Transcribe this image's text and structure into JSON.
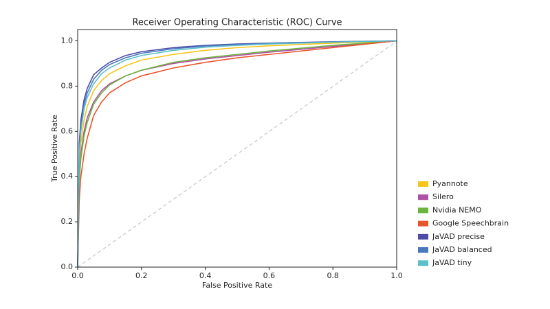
{
  "chart_data": {
    "type": "line",
    "title": "Receiver Operating Characteristic (ROC) Curve",
    "xlabel": "False Positive Rate",
    "ylabel": "True Positive Rate",
    "x": [
      0,
      0.005,
      0.01,
      0.02,
      0.03,
      0.05,
      0.075,
      0.1,
      0.15,
      0.2,
      0.3,
      0.4,
      0.5,
      0.6,
      0.8,
      1.0
    ],
    "series": [
      {
        "name": "Pyannote",
        "color": "#f5c518",
        "values": [
          0,
          0.45,
          0.55,
          0.65,
          0.71,
          0.78,
          0.825,
          0.855,
          0.89,
          0.915,
          0.94,
          0.958,
          0.97,
          0.978,
          0.99,
          1
        ]
      },
      {
        "name": "Silero",
        "color": "#b04fa6",
        "values": [
          0,
          0.4,
          0.5,
          0.6,
          0.66,
          0.73,
          0.78,
          0.81,
          0.845,
          0.87,
          0.9,
          0.92,
          0.935,
          0.95,
          0.975,
          1
        ]
      },
      {
        "name": "Nvidia NEMO",
        "color": "#6db33f",
        "values": [
          0,
          0.38,
          0.48,
          0.58,
          0.64,
          0.72,
          0.77,
          0.805,
          0.845,
          0.87,
          0.905,
          0.925,
          0.94,
          0.955,
          0.98,
          1
        ]
      },
      {
        "name": "Google Speechbrain",
        "color": "#e8552b",
        "values": [
          0,
          0.3,
          0.4,
          0.5,
          0.57,
          0.67,
          0.73,
          0.77,
          0.815,
          0.845,
          0.88,
          0.905,
          0.925,
          0.94,
          0.97,
          1
        ]
      },
      {
        "name": "JaVAD precise",
        "color": "#4c4ca8",
        "values": [
          0,
          0.55,
          0.65,
          0.74,
          0.79,
          0.85,
          0.88,
          0.905,
          0.935,
          0.952,
          0.97,
          0.98,
          0.986,
          0.99,
          0.996,
          1
        ]
      },
      {
        "name": "JaVAD balanced",
        "color": "#4a78c0",
        "values": [
          0,
          0.52,
          0.62,
          0.72,
          0.77,
          0.83,
          0.87,
          0.895,
          0.925,
          0.945,
          0.965,
          0.977,
          0.984,
          0.989,
          0.995,
          1
        ]
      },
      {
        "name": "JaVAD tiny",
        "color": "#5bbfc8",
        "values": [
          0,
          0.5,
          0.6,
          0.7,
          0.75,
          0.81,
          0.855,
          0.88,
          0.915,
          0.935,
          0.958,
          0.972,
          0.98,
          0.986,
          0.994,
          1
        ]
      }
    ],
    "xlim": [
      0,
      1
    ],
    "ylim": [
      0,
      1.05
    ],
    "xticks": [
      {
        "value": 0,
        "label": "0.0"
      },
      0.2,
      0.4,
      0.6,
      0.8,
      {
        "value": 1,
        "label": "1.0"
      }
    ],
    "yticks": [
      {
        "value": 0,
        "label": "0.0"
      },
      0.2,
      0.4,
      0.6,
      0.8,
      {
        "value": 1,
        "label": "1.0"
      }
    ],
    "legend": "outside-right"
  }
}
